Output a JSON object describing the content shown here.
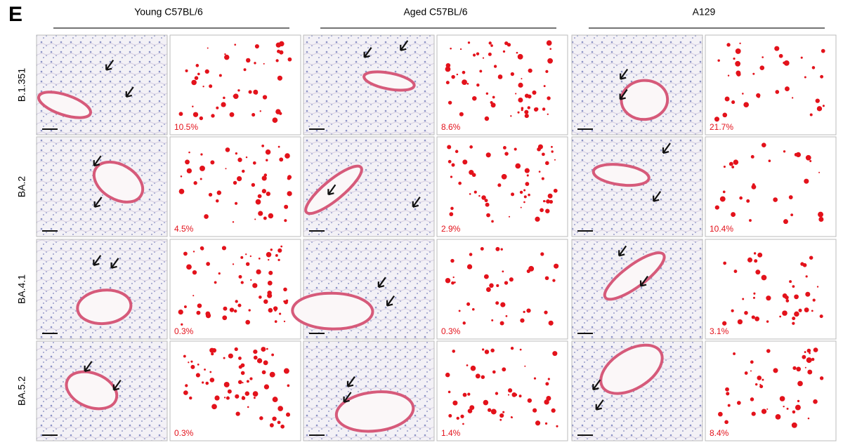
{
  "panel_label": "E",
  "row_labels": [
    "B.1.351",
    "BA.2",
    "BA.4.1",
    "BA.5.2"
  ],
  "column_groups": [
    {
      "title": "Young C57BL/6",
      "percentages": [
        "10.5%",
        "4.5%",
        "0.3%",
        "0.3%"
      ]
    },
    {
      "title": "Aged C57BL/6",
      "percentages": [
        "8.6%",
        "2.9%",
        "0.3%",
        "1.4%"
      ]
    },
    {
      "title": "A129",
      "percentages": [
        "21.7%",
        "10.4%",
        "3.1%",
        "8.4%"
      ]
    }
  ]
}
